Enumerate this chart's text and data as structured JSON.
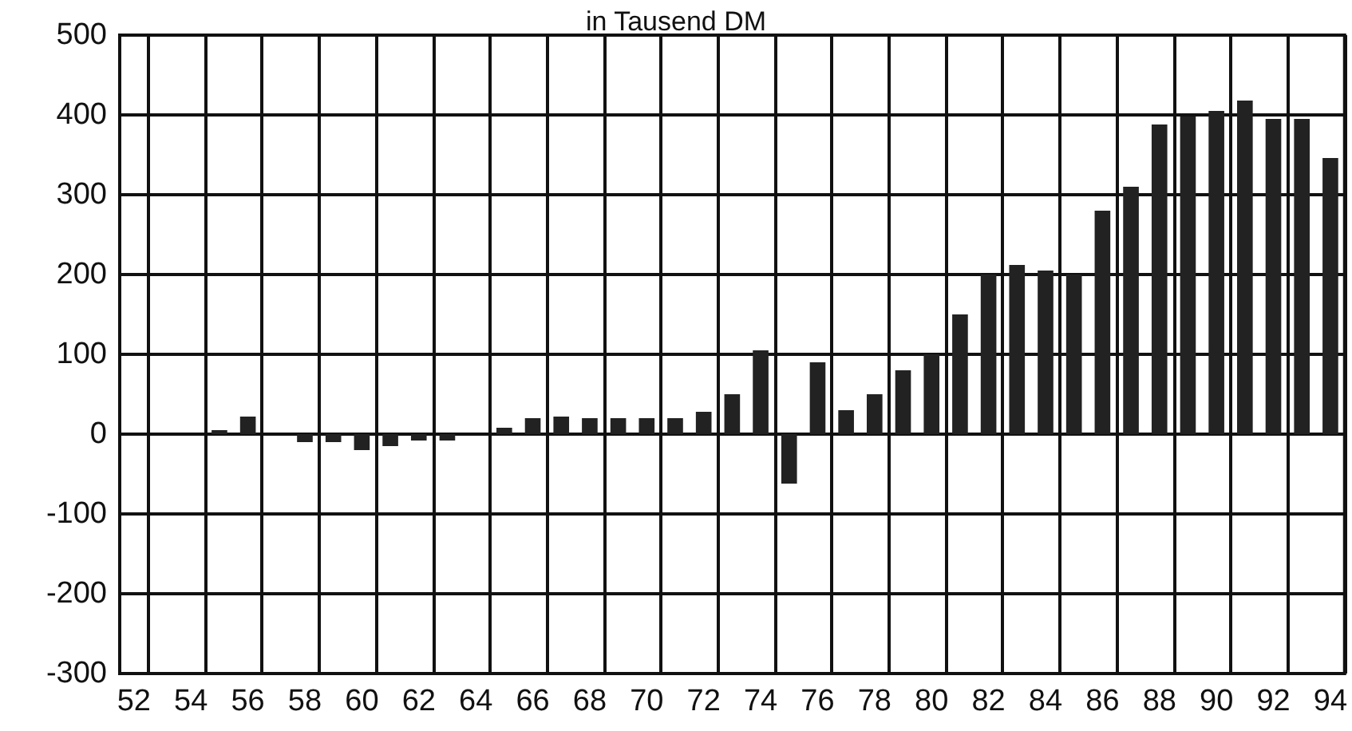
{
  "chart_data": {
    "type": "bar",
    "title": "in Tausend DM",
    "categories": [
      "52",
      null,
      "54",
      null,
      "56",
      null,
      "58",
      null,
      "60",
      null,
      "62",
      null,
      "64",
      null,
      "66",
      null,
      "68",
      null,
      "70",
      null,
      "72",
      null,
      "74",
      null,
      "76",
      null,
      "78",
      null,
      "80",
      null,
      "82",
      null,
      "84",
      null,
      "86",
      null,
      "88",
      null,
      "90",
      null,
      "92",
      null,
      "94"
    ],
    "values": [
      0,
      0,
      0,
      5,
      22,
      0,
      -10,
      -10,
      -20,
      -15,
      -8,
      -8,
      0,
      8,
      20,
      22,
      20,
      20,
      20,
      20,
      28,
      50,
      105,
      -62,
      90,
      30,
      50,
      80,
      100,
      150,
      200,
      212,
      205,
      200,
      280,
      310,
      388,
      398,
      405,
      418,
      395,
      395,
      346
    ],
    "color": "#222222",
    "ylim": [
      -300,
      500
    ],
    "yticks": [
      -300,
      -200,
      -100,
      0,
      100,
      200,
      300,
      400,
      500
    ],
    "grid": true
  }
}
